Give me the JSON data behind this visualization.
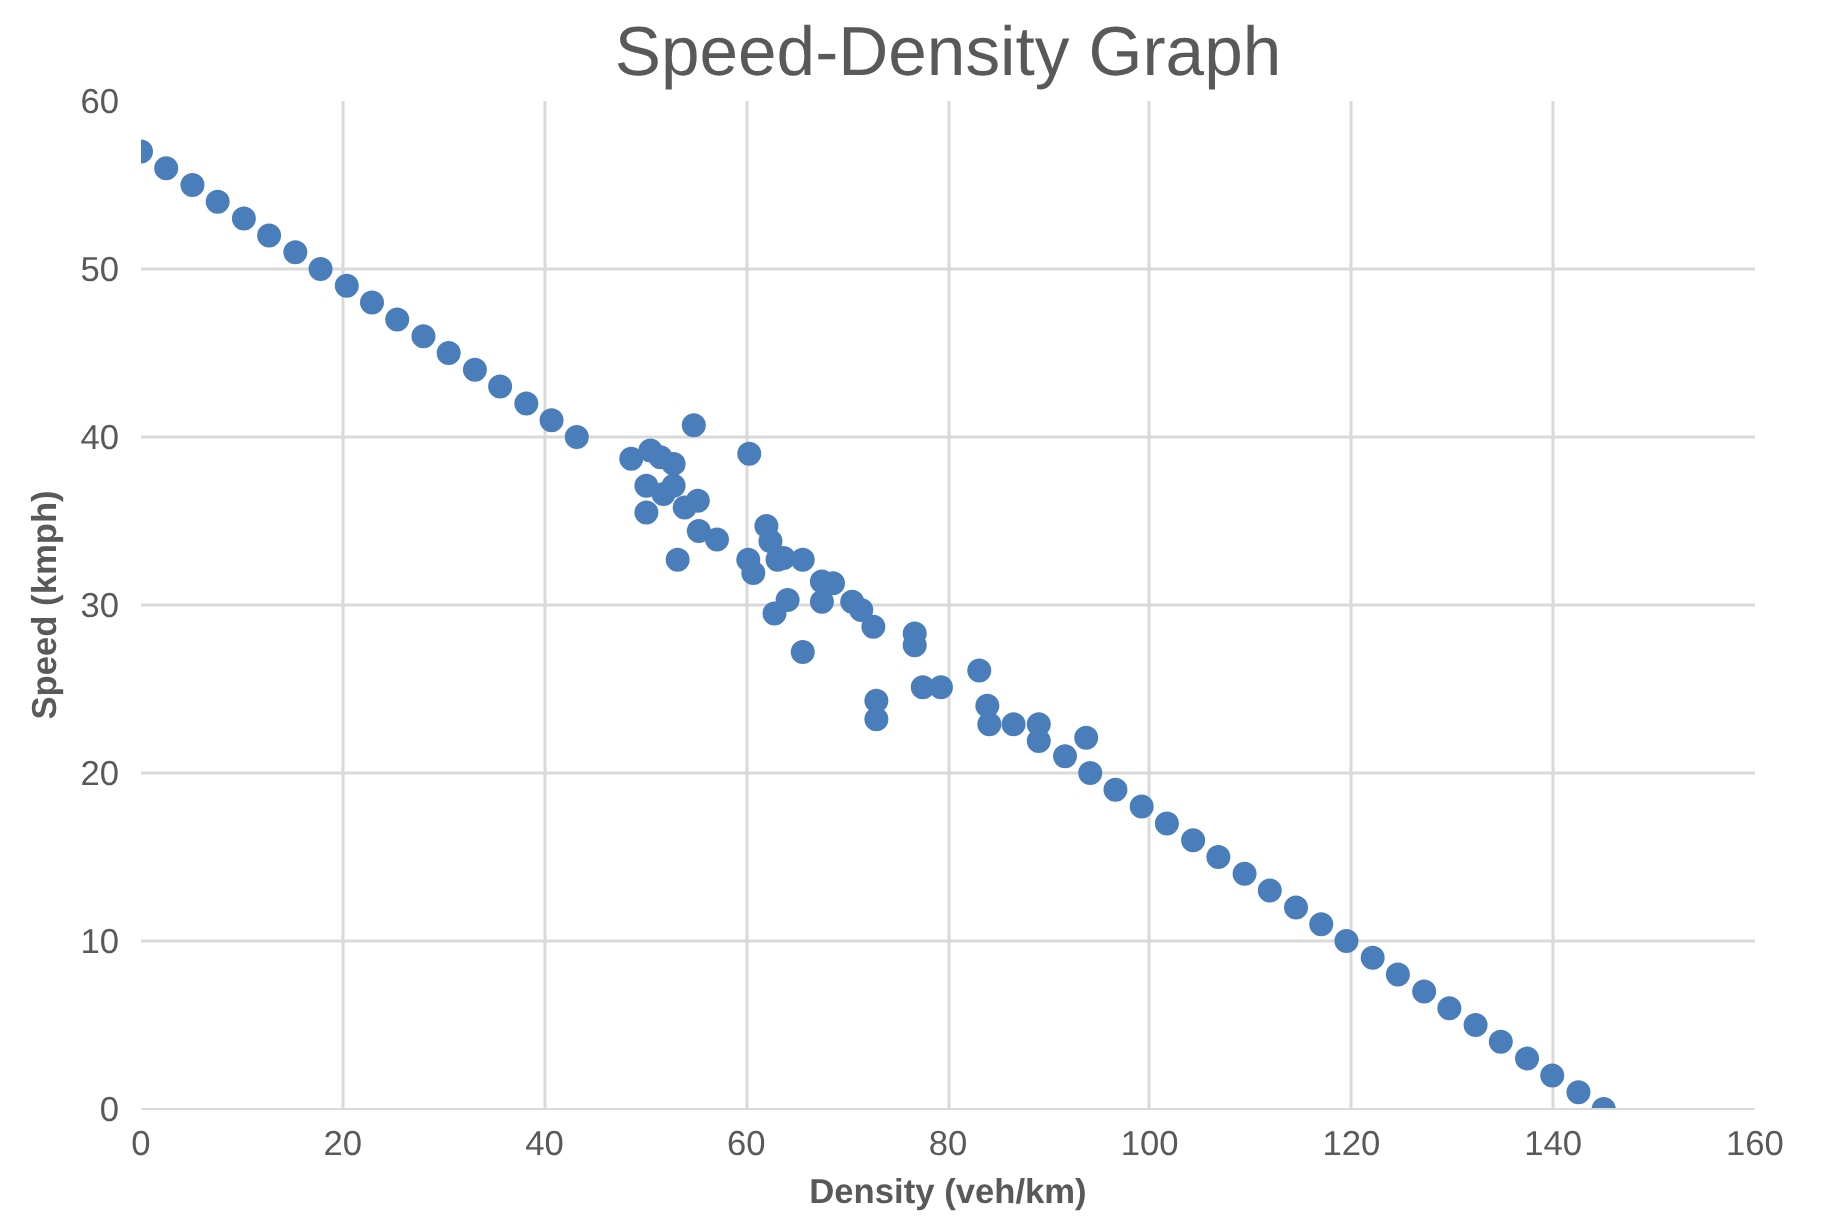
{
  "chart_data": {
    "type": "scatter",
    "title": "Speed-Density Graph",
    "xlabel": "Density (veh/km)",
    "ylabel": "Speed (kmph)",
    "xlim": [
      0,
      160
    ],
    "ylim": [
      0,
      60
    ],
    "xticks": [
      0,
      20,
      40,
      60,
      80,
      100,
      120,
      140,
      160
    ],
    "yticks": [
      0,
      10,
      20,
      30,
      40,
      50,
      60
    ],
    "grid": true,
    "marker": "circle",
    "series": [
      {
        "color": "#4a7ebb",
        "x": [
          0,
          2.5,
          5.1,
          7.6,
          10.2,
          12.7,
          15.3,
          17.8,
          20.4,
          22.9,
          25.4,
          28,
          30.5,
          33.1,
          35.6,
          38.2,
          40.7,
          43.2,
          48.6,
          50.5,
          51.5,
          52.8,
          54.8,
          60.3,
          50.1,
          50.1,
          51.8,
          52.8,
          53.9,
          55.2,
          53.2,
          55.3,
          57.1,
          60.2,
          60.7,
          62.0,
          62.4,
          63.1,
          63.7,
          62.8,
          64.1,
          65.6,
          65.6,
          67.5,
          67.5,
          68.6,
          70.5,
          71.4,
          72.6,
          72.9,
          72.9,
          76.7,
          76.7,
          77.5,
          79.3,
          83.1,
          83.9,
          84.1,
          86.5,
          89.0,
          89.0,
          91.6,
          93.7,
          94.1,
          96.6,
          99.2,
          101.7,
          104.3,
          106.8,
          109.4,
          111.9,
          114.5,
          117,
          119.5,
          122.1,
          124.6,
          127.2,
          129.7,
          132.3,
          134.8,
          137.4,
          139.9,
          142.5,
          145
        ],
        "values": [
          57,
          56,
          55,
          54,
          53,
          52,
          51,
          50,
          49,
          48,
          47,
          46,
          45,
          44,
          43,
          42,
          41,
          40,
          38.7,
          39.2,
          38.8,
          38.4,
          40.7,
          39.0,
          37.1,
          35.5,
          36.6,
          37.1,
          35.8,
          36.2,
          32.7,
          34.4,
          33.9,
          32.7,
          31.9,
          34.7,
          33.8,
          32.7,
          32.8,
          29.5,
          30.3,
          32.7,
          27.2,
          31.4,
          30.2,
          31.3,
          30.2,
          29.7,
          28.7,
          24.3,
          23.2,
          28.3,
          27.6,
          25.1,
          25.1,
          26.1,
          24.0,
          22.9,
          22.9,
          22.9,
          21.9,
          21.0,
          22.1,
          20,
          19,
          18,
          17,
          16,
          15,
          14,
          13,
          12,
          11,
          10,
          9,
          8,
          7,
          6,
          5,
          4,
          3,
          2,
          1,
          0
        ]
      }
    ]
  }
}
